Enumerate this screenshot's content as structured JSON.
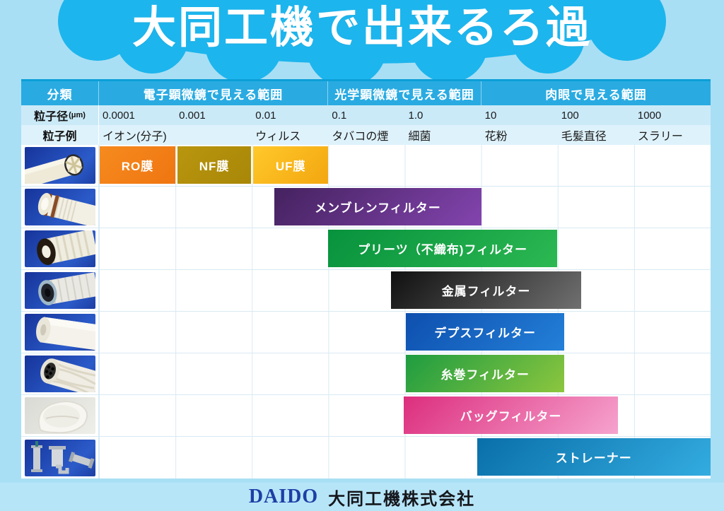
{
  "title": "大同工機で出来るろ過",
  "colors": {
    "page_bg": "#A9DFF4",
    "cloud": "#1DB5ED",
    "header_blue": "#29ABE2",
    "header_top_border": "#0C9FD8",
    "size_row_bg": "#CBEAF8",
    "example_row_bg": "#DEF2FB",
    "grid_line": "#D8EAF3",
    "photo_bg_blue": "#1C3FA4",
    "logo_blue": "#1D3FA5"
  },
  "table": {
    "classification_header": "分類",
    "range_headers": [
      {
        "label": "電子顕微鏡で見える範囲",
        "span_cols": 3
      },
      {
        "label": "光学顕微鏡で見える範囲",
        "span_cols": 2
      },
      {
        "label": "肉眼で見える範囲",
        "span_cols": 3
      }
    ],
    "size_row_label": "粒子径",
    "size_row_unit": "(μm)",
    "size_ticks": [
      "0.0001",
      "0.001",
      "0.01",
      "0.1",
      "1.0",
      "10",
      "100",
      "1000"
    ],
    "example_row_label": "粒子例",
    "example_ticks": [
      "イオン(分子)",
      "",
      "ウィルス",
      "タバコの煙",
      "細菌",
      "花粉",
      "毛髪直径",
      "スラリー"
    ]
  },
  "chart_data": {
    "type": "bar",
    "orientation": "horizontal-range",
    "title": "大同工機で出来るろ過",
    "xlabel": "粒子径(μm)",
    "x_scale": "log",
    "x_ticks_um": [
      0.0001,
      0.001,
      0.01,
      0.1,
      1.0,
      10,
      100,
      1000
    ],
    "xlim_um": [
      0.0001,
      10000
    ],
    "grid": true,
    "rows": [
      {
        "photo": "membrane-module-photo",
        "bars": [
          {
            "id": "ro",
            "label": "RO膜",
            "range_um": [
              0.0001,
              0.001
            ],
            "left_pct": 0.1,
            "width_pct": 12.4,
            "color_from": "#F68B1F",
            "color_to": "#EF7511"
          },
          {
            "id": "nf",
            "label": "NF膜",
            "range_um": [
              0.001,
              0.01
            ],
            "left_pct": 12.8,
            "width_pct": 12.1,
            "color_from": "#B9960F",
            "color_to": "#A88708"
          },
          {
            "id": "uf",
            "label": "UF膜",
            "range_um": [
              0.01,
              0.1
            ],
            "left_pct": 25.2,
            "width_pct": 12.3,
            "color_from": "#FFC92B",
            "color_to": "#F3A60F"
          }
        ]
      },
      {
        "photo": "membrane-filter-photo",
        "bars": [
          {
            "id": "membrane",
            "label": "メンブレンフィルター",
            "range_um": [
              0.02,
              10
            ],
            "left_pct": 28.7,
            "width_pct": 33.8,
            "color_from": "#44225F",
            "color_to": "#8344AE"
          }
        ]
      },
      {
        "photo": "pleated-filter-photo",
        "bars": [
          {
            "id": "pleated",
            "label": "プリーツ（不織布)フィルター",
            "range_um": [
              0.1,
              100
            ],
            "left_pct": 37.5,
            "width_pct": 37.4,
            "color_from": "#07923D",
            "color_to": "#2CB852"
          }
        ]
      },
      {
        "photo": "metal-filter-photo",
        "bars": [
          {
            "id": "metal",
            "label": "金属フィルター",
            "range_um": [
              0.5,
              200
            ],
            "left_pct": 47.7,
            "width_pct": 31.2,
            "color_from": "#101010",
            "color_to": "#707070"
          }
        ]
      },
      {
        "photo": "depth-filter-photo",
        "bars": [
          {
            "id": "depth",
            "label": "デプスフィルター",
            "range_um": [
              1,
              100
            ],
            "left_pct": 50.2,
            "width_pct": 25.9,
            "color_from": "#0E4FAE",
            "color_to": "#2380D8"
          }
        ]
      },
      {
        "photo": "string-wound-filter-photo",
        "bars": [
          {
            "id": "string-wound",
            "label": "糸巻フィルター",
            "range_um": [
              1,
              100
            ],
            "left_pct": 50.2,
            "width_pct": 25.9,
            "color_from": "#1E9C40",
            "color_to": "#8CC63F"
          }
        ]
      },
      {
        "photo": "bag-filter-photo",
        "bars": [
          {
            "id": "bag",
            "label": "バッグフィルター",
            "range_um": [
              1,
              500
            ],
            "left_pct": 49.8,
            "width_pct": 35.1,
            "color_from": "#DC2E7E",
            "color_to": "#F6A3CE"
          }
        ]
      },
      {
        "photo": "strainer-photo",
        "bars": [
          {
            "id": "strainer",
            "label": "ストレーナー",
            "range_um": [
              10,
              10000
            ],
            "left_pct": 61.8,
            "width_pct": 38.2,
            "color_from": "#0A6FA9",
            "color_to": "#33ACE0"
          }
        ]
      }
    ]
  },
  "footer": {
    "logo": "DAIDO",
    "company": "大同工機株式会社"
  }
}
